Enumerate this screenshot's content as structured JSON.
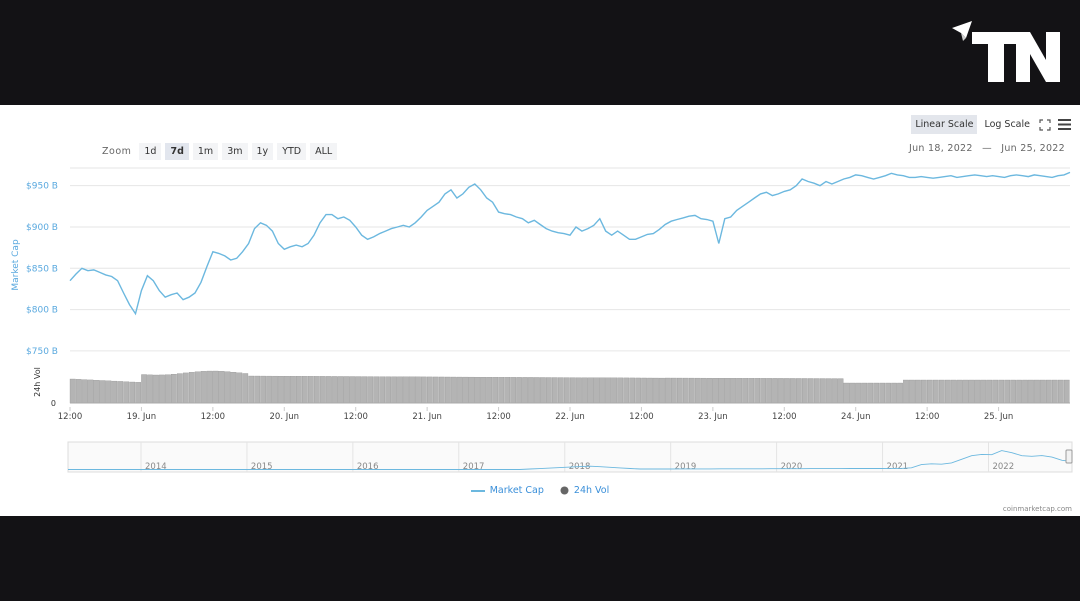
{
  "brand": {
    "logo_text": "TN"
  },
  "toolbar": {
    "linear_label": "Linear Scale",
    "log_label": "Log Scale"
  },
  "zoom": {
    "label": "Zoom",
    "options": [
      "1d",
      "7d",
      "1m",
      "3m",
      "1y",
      "YTD",
      "ALL"
    ],
    "active": "7d"
  },
  "date_range": {
    "from": "Jun 18, 2022",
    "sep": "—",
    "to": "Jun 25, 2022"
  },
  "legend": {
    "market_cap": "Market Cap",
    "vol": "24h Vol"
  },
  "credit": "coinmarketcap.com",
  "colors": {
    "line": "#6cb8df",
    "axis_text": "#5aa9df",
    "vol_bar": "#b4b4b4",
    "bg_dark": "#131215"
  },
  "icons": [
    "send-icon",
    "expand-icon",
    "menu-icon",
    "line-legend-icon",
    "bar-legend-icon"
  ],
  "chart_data": {
    "type": "line",
    "ylabel": "Market Cap",
    "y_unit_labels": [
      "$950 B",
      "$900 B",
      "$850 B",
      "$800 B",
      "$750 B"
    ],
    "yticks": [
      950,
      900,
      850,
      800,
      750
    ],
    "ylim": [
      745,
      975
    ],
    "x_range_hours": [
      0,
      168
    ],
    "x_start": "Jun 18, 2022 12:00",
    "x_ticks": [
      {
        "h": 0,
        "label": "12:00"
      },
      {
        "h": 12,
        "label": "19. Jun"
      },
      {
        "h": 24,
        "label": "12:00"
      },
      {
        "h": 36,
        "label": "20. Jun"
      },
      {
        "h": 48,
        "label": "12:00"
      },
      {
        "h": 60,
        "label": "21. Jun"
      },
      {
        "h": 72,
        "label": "12:00"
      },
      {
        "h": 84,
        "label": "22. Jun"
      },
      {
        "h": 96,
        "label": "12:00"
      },
      {
        "h": 108,
        "label": "23. Jun"
      },
      {
        "h": 120,
        "label": "12:00"
      },
      {
        "h": 132,
        "label": "24. Jun"
      },
      {
        "h": 144,
        "label": "12:00"
      },
      {
        "h": 156,
        "label": "25. Jun"
      }
    ],
    "series": [
      {
        "name": "Market Cap",
        "x": [
          0,
          1,
          2,
          3,
          4,
          5,
          6,
          7,
          8,
          9,
          10,
          11,
          12,
          13,
          14,
          15,
          16,
          17,
          18,
          19,
          20,
          21,
          22,
          23,
          24,
          25,
          26,
          27,
          28,
          29,
          30,
          31,
          32,
          33,
          34,
          35,
          36,
          37,
          38,
          39,
          40,
          41,
          42,
          43,
          44,
          45,
          46,
          47,
          48,
          49,
          50,
          51,
          52,
          53,
          54,
          55,
          56,
          57,
          58,
          59,
          60,
          61,
          62,
          63,
          64,
          65,
          66,
          67,
          68,
          69,
          70,
          71,
          72,
          73,
          74,
          75,
          76,
          77,
          78,
          79,
          80,
          81,
          82,
          83,
          84,
          85,
          86,
          87,
          88,
          89,
          90,
          91,
          92,
          93,
          94,
          95,
          96,
          97,
          98,
          99,
          100,
          101,
          102,
          103,
          104,
          105,
          106,
          107,
          108,
          109,
          110,
          111,
          112,
          113,
          114,
          115,
          116,
          117,
          118,
          119,
          120,
          121,
          122,
          123,
          124,
          125,
          126,
          127,
          128,
          129,
          130,
          131,
          132,
          133,
          134,
          135,
          136,
          137,
          138,
          139,
          140,
          141,
          142,
          143,
          144,
          145,
          146,
          147,
          148,
          149,
          150,
          151,
          152,
          153,
          154,
          155,
          156,
          157,
          158,
          159,
          160,
          161,
          162,
          163,
          164,
          165,
          166,
          167,
          168
        ],
        "values": [
          835,
          843,
          850,
          847,
          848,
          845,
          842,
          840,
          835,
          820,
          806,
          795,
          823,
          841,
          835,
          823,
          815,
          818,
          820,
          812,
          815,
          820,
          833,
          852,
          870,
          868,
          865,
          860,
          862,
          870,
          880,
          898,
          905,
          902,
          895,
          880,
          873,
          876,
          878,
          876,
          880,
          890,
          905,
          915,
          915,
          910,
          912,
          908,
          900,
          890,
          885,
          888,
          892,
          895,
          898,
          900,
          902,
          900,
          905,
          912,
          920,
          925,
          930,
          940,
          945,
          935,
          940,
          948,
          952,
          945,
          935,
          930,
          918,
          916,
          915,
          912,
          910,
          905,
          908,
          903,
          898,
          895,
          893,
          892,
          890,
          900,
          895,
          898,
          902,
          910,
          895,
          890,
          895,
          890,
          885,
          885,
          888,
          891,
          892,
          897,
          903,
          907,
          909,
          911,
          913,
          914,
          910,
          909,
          907,
          880,
          910,
          912,
          920,
          925,
          930,
          935,
          940,
          942,
          938,
          940,
          943,
          945,
          950,
          958,
          955,
          953,
          950,
          955,
          952,
          955,
          958,
          960,
          963,
          962,
          960,
          958,
          960,
          962,
          965,
          963,
          962,
          960,
          960,
          961,
          960,
          959,
          960,
          961,
          962,
          960,
          961,
          962,
          963,
          962,
          961,
          962,
          961,
          960,
          962,
          963,
          962,
          961,
          963,
          962,
          961,
          960,
          962,
          963,
          966
        ]
      },
      {
        "name": "24h Vol",
        "x_count": 168
      }
    ],
    "vol_axis_label": "24h Vol",
    "vol_axis_zero": "0",
    "navigator_years": [
      "2014",
      "2015",
      "2016",
      "2017",
      "2018",
      "2019",
      "2020",
      "2021",
      "2022"
    ]
  }
}
